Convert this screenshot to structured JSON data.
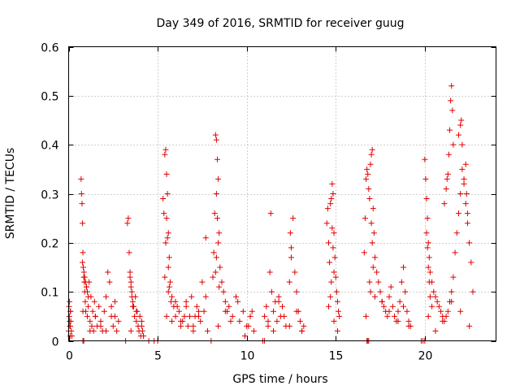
{
  "colors": {
    "marker": "#e00000",
    "grid": "#a0a0a0",
    "axis": "#000000"
  },
  "chart_data": {
    "type": "scatter",
    "title": "Day 349 of 2016, SRMTID for receiver guug",
    "xlabel": "GPS time / hours",
    "ylabel": "SRMTID / TECUs",
    "xlim": [
      0,
      24
    ],
    "ylim": [
      0,
      0.6
    ],
    "x_ticks": [
      0,
      5,
      10,
      15,
      20
    ],
    "y_ticks": [
      0,
      0.1,
      0.2,
      0.3,
      0.4,
      0.5,
      0.6
    ],
    "x_tick_labels": [
      "0",
      "5",
      "10",
      "15",
      "20"
    ],
    "y_tick_labels": [
      "0",
      "0.1",
      "0.2",
      "0.3",
      "0.4",
      "0.5",
      "0.6"
    ],
    "grid": true,
    "marker": "plus",
    "series": [
      {
        "name": "SRMTID",
        "x": [
          0.02,
          0.04,
          0.06,
          0.08,
          0.1,
          0.12,
          0.15,
          0.18,
          0.05,
          0.09,
          0.7,
          0.72,
          0.75,
          0.78,
          0.8,
          0.82,
          0.85,
          0.88,
          0.9,
          0.93,
          0.96,
          1.0,
          1.05,
          1.1,
          1.15,
          1.2,
          1.25,
          1.3,
          1.35,
          1.4,
          1.45,
          1.5,
          1.6,
          1.7,
          1.8,
          1.9,
          2.0,
          2.1,
          2.2,
          2.3,
          2.4,
          2.5,
          2.6,
          2.7,
          2.8,
          0.78,
          0.82,
          0.86,
          0.9,
          0.95,
          1.0,
          1.05,
          3.3,
          3.35,
          3.4,
          3.45,
          3.5,
          3.55,
          3.6,
          3.65,
          3.7,
          3.75,
          3.8,
          3.85,
          3.9,
          3.95,
          4.0,
          4.05,
          4.1,
          4.15,
          4.2,
          3.45,
          3.5,
          3.55,
          3.6,
          5.3,
          5.35,
          5.4,
          5.45,
          5.5,
          5.55,
          5.6,
          5.65,
          5.7,
          5.8,
          5.9,
          6.0,
          6.2,
          6.4,
          6.6,
          6.8,
          7.0,
          7.2,
          7.4,
          7.6,
          7.8,
          5.5,
          5.55,
          5.6,
          5.65,
          5.45,
          5.4,
          5.6,
          5.75,
          6.1,
          6.5,
          6.9,
          7.3,
          7.5,
          7.7,
          6.3,
          6.7,
          7.1,
          8.1,
          8.15,
          8.2,
          8.25,
          8.3,
          8.35,
          8.4,
          8.45,
          8.5,
          8.6,
          8.7,
          8.8,
          8.9,
          9.0,
          9.2,
          9.4,
          9.6,
          9.8,
          10.0,
          10.2,
          10.4,
          8.3,
          8.35,
          8.4,
          8.25,
          8.3,
          8.45,
          11.0,
          11.1,
          11.2,
          11.3,
          11.4,
          11.5,
          11.6,
          11.7,
          11.8,
          11.9,
          12.0,
          12.2,
          12.4,
          12.5,
          12.6,
          12.7,
          12.8,
          12.9,
          13.0,
          13.1,
          13.2,
          11.35,
          12.45,
          12.5,
          14.5,
          14.55,
          14.6,
          14.65,
          14.7,
          14.75,
          14.8,
          14.85,
          14.9,
          14.95,
          15.0,
          15.05,
          15.1,
          15.15,
          15.2,
          14.8,
          14.85,
          14.9,
          14.75,
          14.7,
          16.6,
          16.65,
          16.7,
          16.75,
          16.8,
          16.85,
          16.9,
          16.95,
          17.0,
          17.05,
          17.1,
          17.15,
          17.2,
          17.3,
          17.4,
          17.5,
          17.6,
          17.7,
          17.8,
          17.9,
          18.0,
          18.1,
          18.2,
          18.3,
          18.4,
          18.5,
          18.6,
          18.7,
          18.8,
          18.9,
          19.0,
          19.1,
          19.2,
          17.0,
          17.05,
          17.1,
          16.9,
          16.95,
          20.0,
          20.05,
          20.1,
          20.15,
          20.2,
          20.25,
          20.3,
          20.4,
          20.5,
          20.6,
          20.7,
          20.8,
          20.9,
          21.0,
          21.1,
          21.2,
          21.3,
          21.4,
          21.5,
          21.6,
          21.7,
          21.8,
          21.9,
          22.0,
          22.1,
          22.2,
          22.3,
          22.4,
          22.5,
          22.6,
          22.7,
          21.35,
          21.4,
          21.45,
          21.5,
          21.55,
          21.6,
          21.3,
          21.9,
          22.0,
          22.05,
          22.1,
          22.2,
          22.3,
          22.35,
          22.4,
          20.1,
          20.15,
          20.2,
          20.25,
          20.3,
          20.4,
          21.1,
          21.2,
          21.25,
          0.0,
          0.05,
          0.1,
          0.8,
          1.1,
          1.2,
          1.5,
          1.8,
          2.1,
          2.4,
          2.6,
          3.5,
          3.8,
          4.1,
          5.5,
          5.8,
          6.0,
          6.3,
          6.6,
          7.0,
          7.3,
          7.7,
          8.4,
          8.8,
          9.1,
          9.5,
          9.9,
          10.1,
          10.3,
          11.2,
          11.5,
          11.8,
          12.1,
          12.4,
          12.8,
          13.1,
          14.6,
          14.9,
          15.1,
          16.7,
          17.2,
          17.6,
          18.0,
          18.5,
          18.8,
          19.1,
          20.2,
          20.6,
          21.0,
          21.5,
          22.0,
          22.5,
          0.8,
          4.8,
          5.0,
          8.0,
          10.9,
          11.0,
          16.8,
          16.75,
          16.85,
          19.8,
          19.9,
          20.0,
          3.2,
          0.85,
          4.5
        ],
        "y": [
          0.07,
          0.05,
          0.03,
          0.01,
          0.06,
          0.04,
          0.02,
          0.01,
          0.08,
          0.03,
          0.33,
          0.3,
          0.28,
          0.24,
          0.18,
          0.15,
          0.13,
          0.12,
          0.1,
          0.08,
          0.06,
          0.11,
          0.05,
          0.07,
          0.12,
          0.04,
          0.09,
          0.03,
          0.06,
          0.02,
          0.08,
          0.05,
          0.03,
          0.07,
          0.04,
          0.02,
          0.06,
          0.09,
          0.14,
          0.12,
          0.05,
          0.03,
          0.08,
          0.02,
          0.04,
          0.16,
          0.15,
          0.14,
          0.13,
          0.12,
          0.11,
          0.1,
          0.24,
          0.25,
          0.18,
          0.14,
          0.12,
          0.1,
          0.08,
          0.07,
          0.05,
          0.09,
          0.04,
          0.06,
          0.03,
          0.02,
          0.05,
          0.01,
          0.04,
          0.02,
          0.01,
          0.13,
          0.11,
          0.09,
          0.07,
          0.29,
          0.26,
          0.38,
          0.39,
          0.34,
          0.3,
          0.22,
          0.17,
          0.12,
          0.09,
          0.07,
          0.05,
          0.06,
          0.04,
          0.08,
          0.05,
          0.03,
          0.07,
          0.04,
          0.06,
          0.02,
          0.25,
          0.21,
          0.15,
          0.11,
          0.2,
          0.13,
          0.1,
          0.08,
          0.07,
          0.05,
          0.09,
          0.06,
          0.12,
          0.21,
          0.04,
          0.03,
          0.05,
          0.13,
          0.18,
          0.26,
          0.42,
          0.41,
          0.37,
          0.33,
          0.22,
          0.15,
          0.12,
          0.1,
          0.08,
          0.06,
          0.07,
          0.05,
          0.09,
          0.04,
          0.06,
          0.03,
          0.05,
          0.02,
          0.3,
          0.25,
          0.2,
          0.14,
          0.17,
          0.11,
          0.05,
          0.07,
          0.03,
          0.14,
          0.1,
          0.06,
          0.08,
          0.04,
          0.09,
          0.05,
          0.07,
          0.03,
          0.12,
          0.17,
          0.25,
          0.14,
          0.1,
          0.06,
          0.04,
          0.02,
          0.03,
          0.26,
          0.22,
          0.19,
          0.24,
          0.27,
          0.2,
          0.16,
          0.28,
          0.29,
          0.32,
          0.3,
          0.22,
          0.17,
          0.13,
          0.1,
          0.08,
          0.06,
          0.05,
          0.23,
          0.19,
          0.14,
          0.12,
          0.09,
          0.18,
          0.25,
          0.33,
          0.35,
          0.34,
          0.31,
          0.29,
          0.36,
          0.38,
          0.39,
          0.27,
          0.22,
          0.17,
          0.14,
          0.12,
          0.1,
          0.08,
          0.07,
          0.06,
          0.05,
          0.09,
          0.11,
          0.07,
          0.05,
          0.04,
          0.06,
          0.08,
          0.12,
          0.15,
          0.1,
          0.06,
          0.04,
          0.03,
          0.24,
          0.2,
          0.15,
          0.12,
          0.1,
          0.37,
          0.33,
          0.29,
          0.25,
          0.2,
          0.17,
          0.14,
          0.12,
          0.1,
          0.09,
          0.08,
          0.07,
          0.06,
          0.05,
          0.04,
          0.05,
          0.06,
          0.08,
          0.1,
          0.13,
          0.18,
          0.22,
          0.26,
          0.3,
          0.35,
          0.33,
          0.28,
          0.24,
          0.2,
          0.16,
          0.1,
          0.38,
          0.43,
          0.49,
          0.52,
          0.47,
          0.4,
          0.34,
          0.42,
          0.44,
          0.45,
          0.4,
          0.32,
          0.36,
          0.3,
          0.26,
          0.22,
          0.19,
          0.15,
          0.12,
          0.09,
          0.07,
          0.28,
          0.31,
          0.33,
          0.02,
          0.04,
          0.06,
          0.06,
          0.09,
          0.02,
          0.05,
          0.03,
          0.02,
          0.07,
          0.05,
          0.02,
          0.06,
          0.03,
          0.05,
          0.04,
          0.08,
          0.03,
          0.07,
          0.02,
          0.05,
          0.09,
          0.03,
          0.06,
          0.04,
          0.08,
          0.01,
          0.03,
          0.06,
          0.04,
          0.02,
          0.08,
          0.05,
          0.03,
          0.06,
          0.02,
          0.07,
          0.04,
          0.02,
          0.05,
          0.09,
          0.08,
          0.06,
          0.04,
          0.07,
          0.03,
          0.05,
          0.02,
          0.04,
          0.08,
          0.06,
          0.03,
          0.0,
          0.0,
          0.0,
          0.0,
          0.0,
          0.0,
          0.0,
          0.0,
          0.0,
          0.0,
          0.0,
          0.0,
          0.0,
          0.0,
          0.0
        ]
      }
    ]
  }
}
